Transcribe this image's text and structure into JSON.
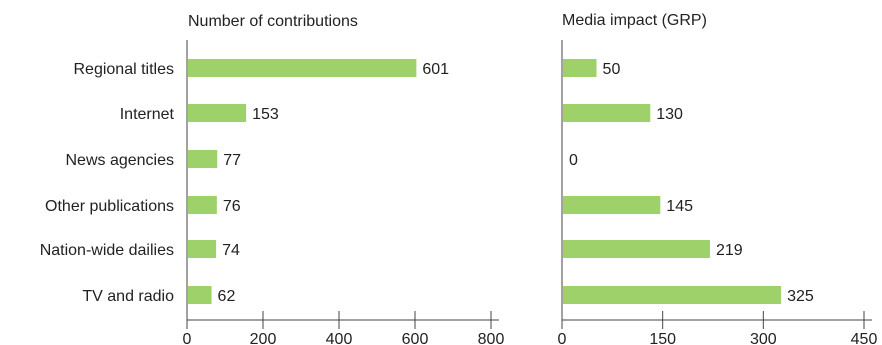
{
  "bar_color": "#9fd16a",
  "axis_color": "#444444",
  "chart_data": [
    {
      "type": "bar",
      "orientation": "horizontal",
      "title": "Number of contributions",
      "categories": [
        "Regional titles",
        "Internet",
        "News agencies",
        "Other publications",
        "Nation-wide dailies",
        "TV and radio"
      ],
      "values": [
        601,
        153,
        77,
        76,
        74,
        62
      ],
      "xlim": [
        0,
        800
      ],
      "ticks": [
        0,
        200,
        400,
        600,
        800
      ],
      "grid": false,
      "data_labels": true
    },
    {
      "type": "bar",
      "orientation": "horizontal",
      "title": "Media impact (GRP)",
      "categories": [
        "Regional titles",
        "Internet",
        "News agencies",
        "Other publications",
        "Nation-wide dailies",
        "TV and radio"
      ],
      "values": [
        50,
        130,
        0,
        145,
        219,
        325
      ],
      "xlim": [
        0,
        450
      ],
      "ticks": [
        0,
        150,
        300,
        450
      ],
      "grid": false,
      "data_labels": true
    }
  ]
}
